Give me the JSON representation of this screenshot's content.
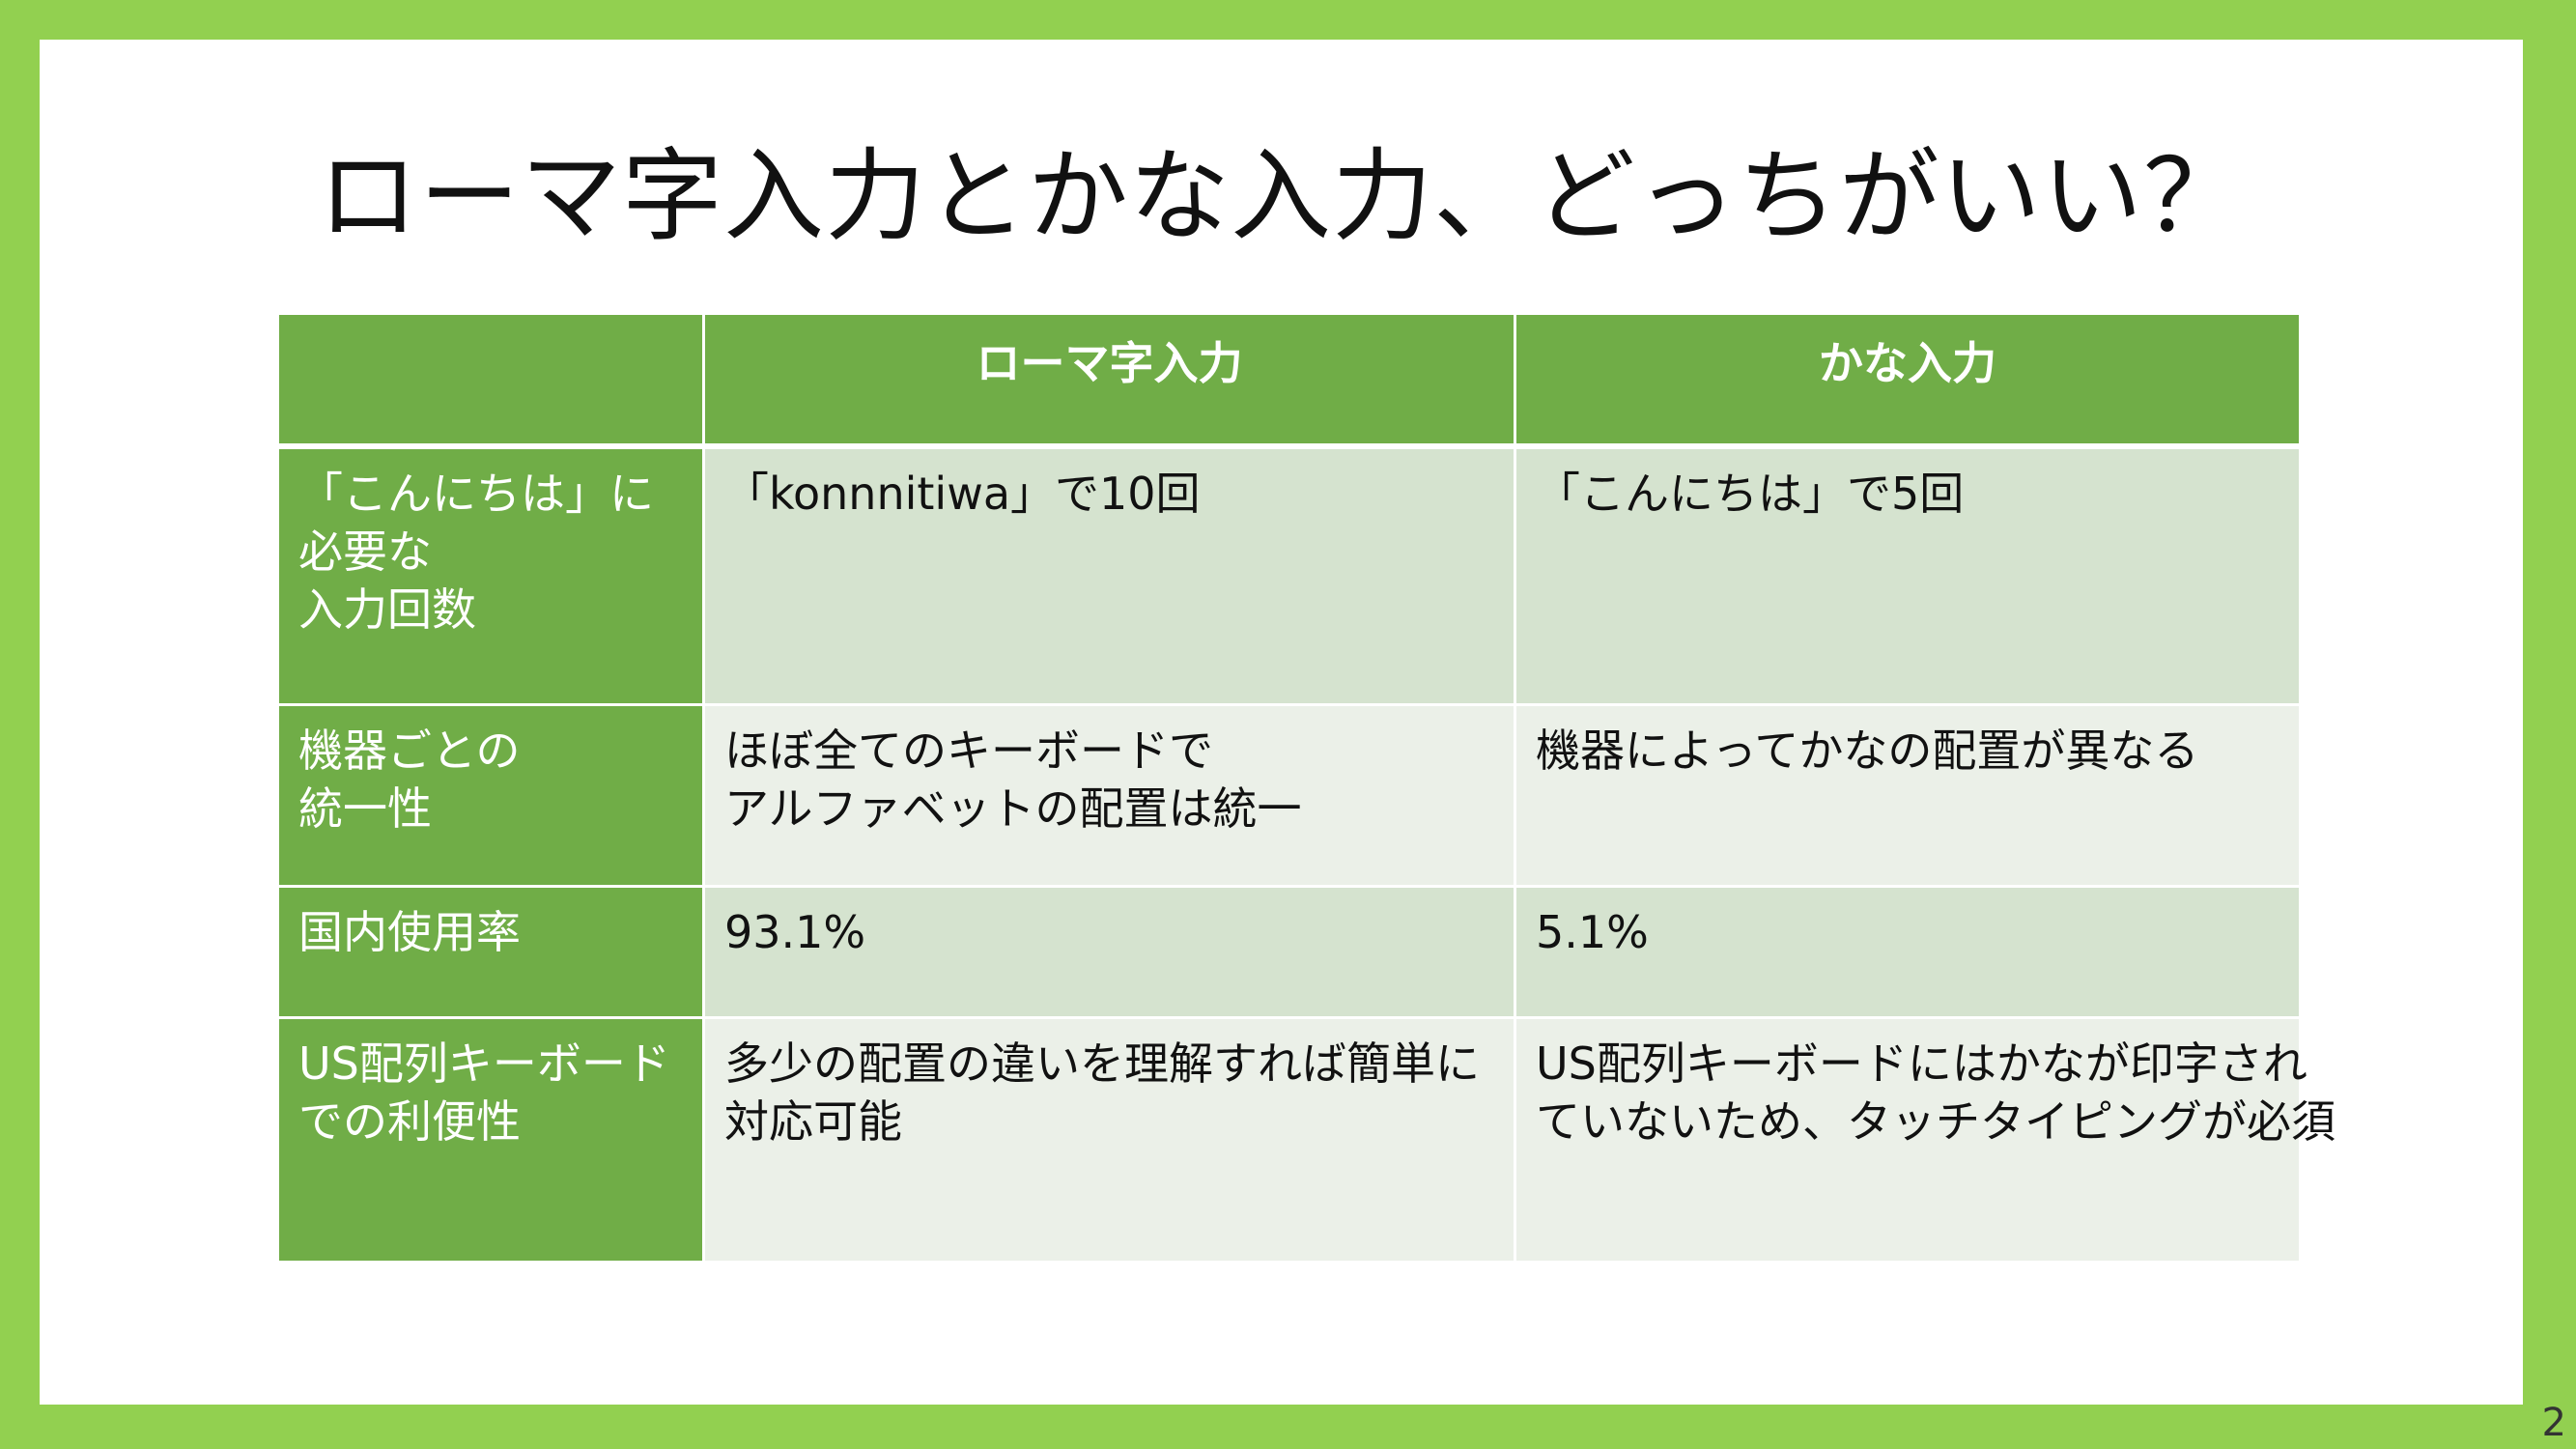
{
  "slide": {
    "title": "ローマ字入力とかな入力、どっちがいい？",
    "page_number": "2"
  },
  "table": {
    "headers": [
      "",
      "ローマ字入力",
      "かな入力"
    ],
    "rows": [
      {
        "label_lines": [
          "「こんにちは」に",
          "必要な",
          "入力回数"
        ],
        "romaji_lines": [
          "「konnnitiwa」で10回"
        ],
        "kana_lines": [
          "「こんにちは」で5回"
        ]
      },
      {
        "label_lines": [
          "機器ごとの",
          "統一性"
        ],
        "romaji_lines": [
          "ほぼ全てのキーボードで",
          "アルファベットの配置は統一"
        ],
        "kana_lines": [
          "機器によってかなの配置が異なる"
        ]
      },
      {
        "label_lines": [
          "国内使用率"
        ],
        "romaji_lines": [
          "93.1%"
        ],
        "kana_lines": [
          "5.1%"
        ]
      },
      {
        "label_lines": [
          "US配列キーボード",
          "での利便性"
        ],
        "romaji_lines": [
          "多少の配置の違いを理解すれば簡単に",
          "対応可能"
        ],
        "kana_lines": [
          "US配列キーボードにはかなが印字され",
          "ていないため、タッチタイピングが必須"
        ]
      }
    ]
  }
}
